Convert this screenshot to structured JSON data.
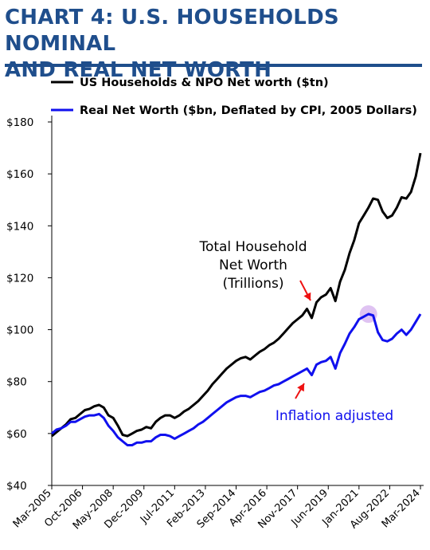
{
  "header": {
    "title_line1": "CHART 4: U.S. HOUSEHOLDS NOMINAL",
    "title_line2": "AND REAL NET WORTH"
  },
  "colors": {
    "title": "#1f4e8c",
    "nominal": "#000000",
    "real": "#1010ee",
    "arrow": "#ee1111",
    "highlight": "#d9b8f0"
  },
  "chart_data": {
    "type": "line",
    "title": "CHART 4: U.S. HOUSEHOLDS NOMINAL AND REAL NET WORTH",
    "xlabel": "",
    "ylabel": "",
    "ylim": [
      40,
      180
    ],
    "y_ticks": [
      "$40",
      "$60",
      "$80",
      "$100",
      "$120",
      "$140",
      "$160",
      "$180"
    ],
    "y_tick_values": [
      40,
      60,
      80,
      100,
      120,
      140,
      160,
      180
    ],
    "x_ticks": [
      "Mar-2005",
      "Oct-2006",
      "May-2008",
      "Dec-2009",
      "Jul-2011",
      "Feb-2013",
      "Sep-2014",
      "Apr-2016",
      "Nov-2017",
      "Jun-2019",
      "Jan-2021",
      "Aug-2022",
      "Mar-2024"
    ],
    "x_range": [
      "2005-03",
      "2024-09"
    ],
    "grid": false,
    "legend_position": "top",
    "series": [
      {
        "name": "US Households & NPO Net worth ($tn)",
        "color": "#000000",
        "x": [
          "2005-03",
          "2005-06",
          "2005-09",
          "2005-12",
          "2006-03",
          "2006-06",
          "2006-09",
          "2006-12",
          "2007-03",
          "2007-06",
          "2007-09",
          "2007-12",
          "2008-03",
          "2008-06",
          "2008-09",
          "2008-12",
          "2009-03",
          "2009-06",
          "2009-09",
          "2009-12",
          "2010-03",
          "2010-06",
          "2010-09",
          "2010-12",
          "2011-03",
          "2011-06",
          "2011-09",
          "2011-12",
          "2012-03",
          "2012-06",
          "2012-09",
          "2012-12",
          "2013-03",
          "2013-06",
          "2013-09",
          "2013-12",
          "2014-03",
          "2014-06",
          "2014-09",
          "2014-12",
          "2015-03",
          "2015-06",
          "2015-09",
          "2015-12",
          "2016-03",
          "2016-06",
          "2016-09",
          "2016-12",
          "2017-03",
          "2017-06",
          "2017-09",
          "2017-12",
          "2018-03",
          "2018-06",
          "2018-09",
          "2018-12",
          "2019-03",
          "2019-06",
          "2019-09",
          "2019-12",
          "2020-03",
          "2020-06",
          "2020-09",
          "2020-12",
          "2021-03",
          "2021-06",
          "2021-09",
          "2021-12",
          "2022-03",
          "2022-06",
          "2022-09",
          "2022-12",
          "2023-03",
          "2023-06",
          "2023-09",
          "2023-12",
          "2024-03",
          "2024-06",
          "2024-09"
        ],
        "values": [
          59,
          60.5,
          62,
          63.5,
          65.5,
          66,
          67.5,
          69,
          69.5,
          70.5,
          71,
          70,
          67,
          66,
          63,
          59.5,
          59,
          60,
          61,
          61.5,
          62.5,
          62,
          64.5,
          66,
          67,
          67,
          66,
          67,
          68.5,
          69.5,
          71,
          72.5,
          74.5,
          76.5,
          79,
          81,
          83,
          85,
          86.5,
          88,
          89,
          89.5,
          88.5,
          90,
          91.5,
          92.5,
          94,
          95,
          96.5,
          98.5,
          100.5,
          102.5,
          104,
          105.5,
          108,
          104.5,
          110.5,
          112.5,
          113.5,
          116,
          111,
          118.5,
          123,
          129.5,
          134.5,
          141,
          144,
          147,
          150.5,
          150,
          145.5,
          143,
          144,
          147,
          151,
          150.5,
          153,
          159,
          168
        ]
      },
      {
        "name": "Real Net Worth ($bn, Deflated by CPI, 2005 Dollars)",
        "color": "#1010ee",
        "x": [
          "2005-03",
          "2005-06",
          "2005-09",
          "2005-12",
          "2006-03",
          "2006-06",
          "2006-09",
          "2006-12",
          "2007-03",
          "2007-06",
          "2007-09",
          "2007-12",
          "2008-03",
          "2008-06",
          "2008-09",
          "2008-12",
          "2009-03",
          "2009-06",
          "2009-09",
          "2009-12",
          "2010-03",
          "2010-06",
          "2010-09",
          "2010-12",
          "2011-03",
          "2011-06",
          "2011-09",
          "2011-12",
          "2012-03",
          "2012-06",
          "2012-09",
          "2012-12",
          "2013-03",
          "2013-06",
          "2013-09",
          "2013-12",
          "2014-03",
          "2014-06",
          "2014-09",
          "2014-12",
          "2015-03",
          "2015-06",
          "2015-09",
          "2015-12",
          "2016-03",
          "2016-06",
          "2016-09",
          "2016-12",
          "2017-03",
          "2017-06",
          "2017-09",
          "2017-12",
          "2018-03",
          "2018-06",
          "2018-09",
          "2018-12",
          "2019-03",
          "2019-06",
          "2019-09",
          "2019-12",
          "2020-03",
          "2020-06",
          "2020-09",
          "2020-12",
          "2021-03",
          "2021-06",
          "2021-09",
          "2021-12",
          "2022-03",
          "2022-06",
          "2022-09",
          "2022-12",
          "2023-03",
          "2023-06",
          "2023-09",
          "2023-12",
          "2024-03",
          "2024-06",
          "2024-09"
        ],
        "values": [
          60,
          61.5,
          62,
          63,
          64.5,
          64.5,
          65.5,
          66.5,
          67,
          67,
          67.5,
          66,
          63,
          61,
          58.5,
          57,
          55.5,
          55.5,
          56.5,
          56.5,
          57,
          57,
          58.5,
          59.5,
          59.5,
          59,
          58,
          59,
          60,
          61,
          62,
          63.5,
          64.5,
          66,
          67.5,
          69,
          70.5,
          72,
          73,
          74,
          74.5,
          74.5,
          74,
          75,
          76,
          76.5,
          77.5,
          78.5,
          79,
          80,
          81,
          82,
          83,
          84,
          85,
          82.5,
          86.5,
          87.5,
          88,
          89.5,
          85,
          91,
          94.5,
          98.5,
          101,
          104,
          105,
          106,
          105.5,
          99,
          96,
          95.5,
          96.5,
          98.5,
          100,
          98,
          100,
          103,
          106
        ]
      }
    ],
    "annotations": [
      {
        "text": "Total Household",
        "color": "#000000"
      },
      {
        "text": "Net Worth",
        "color": "#000000"
      },
      {
        "text": "(Trillions)",
        "color": "#000000"
      },
      {
        "text": "Inflation adjusted",
        "color": "#1010ee"
      }
    ]
  }
}
